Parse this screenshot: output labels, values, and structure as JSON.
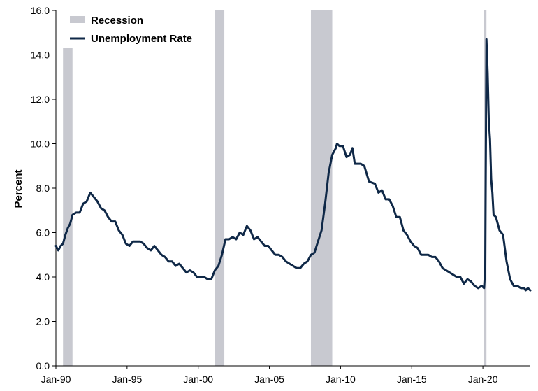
{
  "chart_data": {
    "type": "line",
    "title": "",
    "xlabel": "",
    "ylabel": "Percent",
    "ylim": [
      0,
      16
    ],
    "xlim": [
      "1990-01",
      "2023-05"
    ],
    "y_ticks": [
      "0.0",
      "2.0",
      "4.0",
      "6.0",
      "8.0",
      "10.0",
      "12.0",
      "14.0",
      "16.0"
    ],
    "x_ticks": [
      {
        "label": "Jan-90",
        "date": "1990-01"
      },
      {
        "label": "Jan-95",
        "date": "1995-01"
      },
      {
        "label": "Jan-00",
        "date": "2000-01"
      },
      {
        "label": "Jan-05",
        "date": "2005-01"
      },
      {
        "label": "Jan-10",
        "date": "2010-01"
      },
      {
        "label": "Jan-15",
        "date": "2015-01"
      },
      {
        "label": "Jan-20",
        "date": "2020-01"
      }
    ],
    "grid": false,
    "legend": {
      "position": "top-left",
      "entries": [
        {
          "label": "Recession",
          "kind": "bar",
          "color": "#c8c9d0"
        },
        {
          "label": "Unemployment Rate",
          "kind": "line",
          "color": "#0f2847"
        }
      ]
    },
    "recessions": [
      {
        "start": "1990-07",
        "end": "1991-03",
        "top": 14.3
      },
      {
        "start": "2001-03",
        "end": "2001-11",
        "top": 16.0
      },
      {
        "start": "2007-12",
        "end": "2009-06",
        "top": 16.0
      },
      {
        "start": "2020-02",
        "end": "2020-04",
        "top": 16.0
      }
    ],
    "series": [
      {
        "name": "Unemployment Rate",
        "color": "#0f2847",
        "points": [
          [
            "1990-01",
            5.4
          ],
          [
            "1990-03",
            5.2
          ],
          [
            "1990-05",
            5.4
          ],
          [
            "1990-07",
            5.5
          ],
          [
            "1990-09",
            5.9
          ],
          [
            "1990-11",
            6.2
          ],
          [
            "1991-01",
            6.4
          ],
          [
            "1991-03",
            6.8
          ],
          [
            "1991-06",
            6.9
          ],
          [
            "1991-09",
            6.9
          ],
          [
            "1991-12",
            7.3
          ],
          [
            "1992-03",
            7.4
          ],
          [
            "1992-06",
            7.8
          ],
          [
            "1992-09",
            7.6
          ],
          [
            "1992-12",
            7.4
          ],
          [
            "1993-03",
            7.1
          ],
          [
            "1993-06",
            7.0
          ],
          [
            "1993-09",
            6.7
          ],
          [
            "1993-12",
            6.5
          ],
          [
            "1994-03",
            6.5
          ],
          [
            "1994-06",
            6.1
          ],
          [
            "1994-09",
            5.9
          ],
          [
            "1994-12",
            5.5
          ],
          [
            "1995-03",
            5.4
          ],
          [
            "1995-06",
            5.6
          ],
          [
            "1995-09",
            5.6
          ],
          [
            "1995-12",
            5.6
          ],
          [
            "1996-03",
            5.5
          ],
          [
            "1996-06",
            5.3
          ],
          [
            "1996-09",
            5.2
          ],
          [
            "1996-12",
            5.4
          ],
          [
            "1997-03",
            5.2
          ],
          [
            "1997-06",
            5.0
          ],
          [
            "1997-09",
            4.9
          ],
          [
            "1997-12",
            4.7
          ],
          [
            "1998-03",
            4.7
          ],
          [
            "1998-06",
            4.5
          ],
          [
            "1998-09",
            4.6
          ],
          [
            "1998-12",
            4.4
          ],
          [
            "1999-03",
            4.2
          ],
          [
            "1999-06",
            4.3
          ],
          [
            "1999-09",
            4.2
          ],
          [
            "1999-12",
            4.0
          ],
          [
            "2000-03",
            4.0
          ],
          [
            "2000-06",
            4.0
          ],
          [
            "2000-09",
            3.9
          ],
          [
            "2000-12",
            3.9
          ],
          [
            "2001-03",
            4.3
          ],
          [
            "2001-06",
            4.5
          ],
          [
            "2001-09",
            5.0
          ],
          [
            "2001-12",
            5.7
          ],
          [
            "2002-03",
            5.7
          ],
          [
            "2002-06",
            5.8
          ],
          [
            "2002-09",
            5.7
          ],
          [
            "2002-12",
            6.0
          ],
          [
            "2003-03",
            5.9
          ],
          [
            "2003-06",
            6.3
          ],
          [
            "2003-09",
            6.1
          ],
          [
            "2003-12",
            5.7
          ],
          [
            "2004-03",
            5.8
          ],
          [
            "2004-06",
            5.6
          ],
          [
            "2004-09",
            5.4
          ],
          [
            "2004-12",
            5.4
          ],
          [
            "2005-03",
            5.2
          ],
          [
            "2005-06",
            5.0
          ],
          [
            "2005-09",
            5.0
          ],
          [
            "2005-12",
            4.9
          ],
          [
            "2006-03",
            4.7
          ],
          [
            "2006-06",
            4.6
          ],
          [
            "2006-09",
            4.5
          ],
          [
            "2006-12",
            4.4
          ],
          [
            "2007-03",
            4.4
          ],
          [
            "2007-06",
            4.6
          ],
          [
            "2007-09",
            4.7
          ],
          [
            "2007-12",
            5.0
          ],
          [
            "2008-03",
            5.1
          ],
          [
            "2008-06",
            5.6
          ],
          [
            "2008-09",
            6.1
          ],
          [
            "2008-12",
            7.3
          ],
          [
            "2009-03",
            8.7
          ],
          [
            "2009-06",
            9.5
          ],
          [
            "2009-09",
            9.8
          ],
          [
            "2009-10",
            10.0
          ],
          [
            "2009-12",
            9.9
          ],
          [
            "2010-03",
            9.9
          ],
          [
            "2010-06",
            9.4
          ],
          [
            "2010-09",
            9.5
          ],
          [
            "2010-11",
            9.8
          ],
          [
            "2011-01",
            9.1
          ],
          [
            "2011-06",
            9.1
          ],
          [
            "2011-09",
            9.0
          ],
          [
            "2012-01",
            8.3
          ],
          [
            "2012-06",
            8.2
          ],
          [
            "2012-09",
            7.8
          ],
          [
            "2012-12",
            7.9
          ],
          [
            "2013-03",
            7.5
          ],
          [
            "2013-06",
            7.5
          ],
          [
            "2013-09",
            7.2
          ],
          [
            "2013-12",
            6.7
          ],
          [
            "2014-03",
            6.7
          ],
          [
            "2014-06",
            6.1
          ],
          [
            "2014-09",
            5.9
          ],
          [
            "2014-12",
            5.6
          ],
          [
            "2015-03",
            5.4
          ],
          [
            "2015-06",
            5.3
          ],
          [
            "2015-09",
            5.0
          ],
          [
            "2015-12",
            5.0
          ],
          [
            "2016-03",
            5.0
          ],
          [
            "2016-06",
            4.9
          ],
          [
            "2016-09",
            4.9
          ],
          [
            "2016-12",
            4.7
          ],
          [
            "2017-03",
            4.4
          ],
          [
            "2017-06",
            4.3
          ],
          [
            "2017-09",
            4.2
          ],
          [
            "2017-12",
            4.1
          ],
          [
            "2018-03",
            4.0
          ],
          [
            "2018-06",
            4.0
          ],
          [
            "2018-09",
            3.7
          ],
          [
            "2018-12",
            3.9
          ],
          [
            "2019-03",
            3.8
          ],
          [
            "2019-06",
            3.6
          ],
          [
            "2019-09",
            3.5
          ],
          [
            "2019-12",
            3.6
          ],
          [
            "2020-02",
            3.5
          ],
          [
            "2020-03",
            4.4
          ],
          [
            "2020-04",
            14.7
          ],
          [
            "2020-05",
            13.2
          ],
          [
            "2020-06",
            11.0
          ],
          [
            "2020-07",
            10.2
          ],
          [
            "2020-08",
            8.4
          ],
          [
            "2020-09",
            7.8
          ],
          [
            "2020-10",
            6.8
          ],
          [
            "2020-12",
            6.7
          ],
          [
            "2021-03",
            6.1
          ],
          [
            "2021-06",
            5.9
          ],
          [
            "2021-09",
            4.7
          ],
          [
            "2021-12",
            3.9
          ],
          [
            "2022-03",
            3.6
          ],
          [
            "2022-06",
            3.6
          ],
          [
            "2022-09",
            3.5
          ],
          [
            "2022-12",
            3.5
          ],
          [
            "2023-01",
            3.4
          ],
          [
            "2023-03",
            3.5
          ],
          [
            "2023-05",
            3.4
          ]
        ]
      }
    ]
  }
}
